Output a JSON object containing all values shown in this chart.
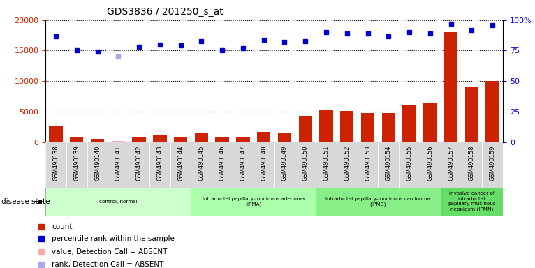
{
  "title": "GDS3836 / 201250_s_at",
  "samples": [
    "GSM490138",
    "GSM490139",
    "GSM490140",
    "GSM490141",
    "GSM490142",
    "GSM490143",
    "GSM490144",
    "GSM490145",
    "GSM490146",
    "GSM490147",
    "GSM490148",
    "GSM490149",
    "GSM490150",
    "GSM490151",
    "GSM490152",
    "GSM490153",
    "GSM490154",
    "GSM490155",
    "GSM490156",
    "GSM490157",
    "GSM490158",
    "GSM490159"
  ],
  "counts": [
    2600,
    700,
    500,
    200,
    800,
    1100,
    900,
    1600,
    700,
    900,
    1700,
    1500,
    4300,
    5300,
    5100,
    4800,
    4700,
    6100,
    6400,
    18000,
    9000,
    10000
  ],
  "percentile": [
    87,
    75,
    74,
    70,
    78,
    80,
    79,
    83,
    75,
    77,
    84,
    82,
    83,
    90,
    89,
    89,
    87,
    90,
    89,
    97,
    92,
    96
  ],
  "absent": [
    false,
    false,
    false,
    true,
    false,
    false,
    false,
    false,
    false,
    false,
    false,
    false,
    false,
    false,
    false,
    false,
    false,
    false,
    false,
    false,
    false,
    false
  ],
  "bar_color_normal": "#cc2200",
  "bar_color_absent": "#ffaaaa",
  "dot_color_normal": "#0000cc",
  "dot_color_absent": "#aaaaee",
  "ylim_left": [
    0,
    20000
  ],
  "ylim_right": [
    0,
    100
  ],
  "yticks_left": [
    0,
    5000,
    10000,
    15000,
    20000
  ],
  "yticks_right": [
    0,
    25,
    50,
    75,
    100
  ],
  "groups": [
    {
      "label": "control, normal",
      "start": 0,
      "end": 7,
      "color": "#ccffcc"
    },
    {
      "label": "intraductal papillary-mucinous adenoma\n(IPMA)",
      "start": 7,
      "end": 13,
      "color": "#aaffaa"
    },
    {
      "label": "intraductal papillary-mucinous carcinoma\n(IPMC)",
      "start": 13,
      "end": 19,
      "color": "#88ee88"
    },
    {
      "label": "invasive cancer of\nintraductal\npapillary-mucinous\nneoplasm (IPMN)",
      "start": 19,
      "end": 22,
      "color": "#66dd66"
    }
  ],
  "disease_state_label": "disease state",
  "legend_items": [
    {
      "label": "count",
      "color": "#cc2200"
    },
    {
      "label": "percentile rank within the sample",
      "color": "#0000cc"
    },
    {
      "label": "value, Detection Call = ABSENT",
      "color": "#ffaaaa"
    },
    {
      "label": "rank, Detection Call = ABSENT",
      "color": "#aaaaee"
    }
  ],
  "bg_color": "#ffffff"
}
